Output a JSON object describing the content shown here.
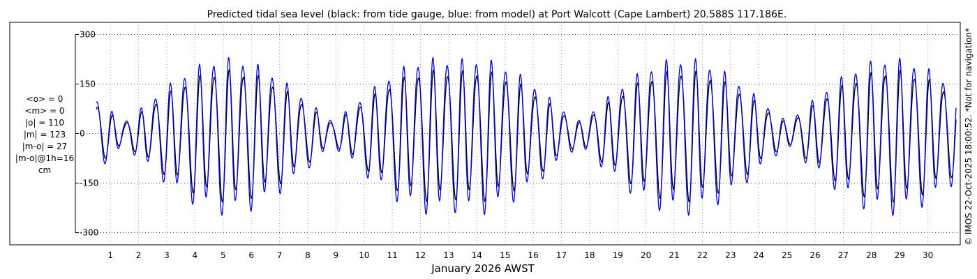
{
  "chart_data": {
    "type": "line",
    "title": "Predicted tidal sea level (black: from tide gauge, blue: from model) at Port Walcott (Cape Lambert) 20.588S 117.186E.",
    "xlabel": "January 2026 AWST",
    "ylabel": "",
    "xlim": [
      0.5,
      31
    ],
    "ylim": [
      -320,
      320
    ],
    "grid": true,
    "y_ticks": [
      {
        "value": 300,
        "label": "300"
      },
      {
        "value": 150,
        "label": "150"
      },
      {
        "value": 0,
        "label": "0"
      },
      {
        "value": -150,
        "label": "-150"
      },
      {
        "value": -300,
        "label": "-300"
      }
    ],
    "x_ticks": [
      {
        "value": 1,
        "label": "1"
      },
      {
        "value": 2,
        "label": "2"
      },
      {
        "value": 3,
        "label": "3"
      },
      {
        "value": 4,
        "label": "4"
      },
      {
        "value": 5,
        "label": "5"
      },
      {
        "value": 6,
        "label": "6"
      },
      {
        "value": 7,
        "label": "7"
      },
      {
        "value": 8,
        "label": "8"
      },
      {
        "value": 9,
        "label": "9"
      },
      {
        "value": 10,
        "label": "10"
      },
      {
        "value": 11,
        "label": "11"
      },
      {
        "value": 12,
        "label": "12"
      },
      {
        "value": 13,
        "label": "13"
      },
      {
        "value": 14,
        "label": "14"
      },
      {
        "value": 15,
        "label": "15"
      },
      {
        "value": 16,
        "label": "16"
      },
      {
        "value": 17,
        "label": "17"
      },
      {
        "value": 18,
        "label": "18"
      },
      {
        "value": 19,
        "label": "19"
      },
      {
        "value": 20,
        "label": "20"
      },
      {
        "value": 21,
        "label": "21"
      },
      {
        "value": 22,
        "label": "22"
      },
      {
        "value": 23,
        "label": "23"
      },
      {
        "value": 24,
        "label": "24"
      },
      {
        "value": 25,
        "label": "25"
      },
      {
        "value": 26,
        "label": "26"
      },
      {
        "value": 27,
        "label": "27"
      },
      {
        "value": 28,
        "label": "28"
      },
      {
        "value": 29,
        "label": "29"
      },
      {
        "value": 30,
        "label": "30"
      }
    ],
    "tide_model": {
      "tidal_period_hours": 12.42,
      "spring_amplitude": 235,
      "neap_amplitude": 40,
      "spring_peaks_day": [
        5.2,
        21.3
      ],
      "phase_offset_day": 0.31,
      "model_extra_amplitude": 22
    },
    "series": [
      {
        "name": "tide gauge",
        "color": "#000000",
        "amplitude_scale": 1.0,
        "time_shift_hours": 0
      },
      {
        "name": "model",
        "color": "#0000dd",
        "amplitude_scale": 1.1,
        "time_shift_hours": 0.4
      }
    ]
  },
  "stats_lines": [
    "<o> = 0",
    "<m> = 0",
    "|o| = 110",
    "|m| = 123",
    "|m-o| = 27",
    "|m-o|@1h=16",
    "cm"
  ],
  "credit": "© IMOS 22-Oct-2025 18:00:52. *Not for navigation*"
}
